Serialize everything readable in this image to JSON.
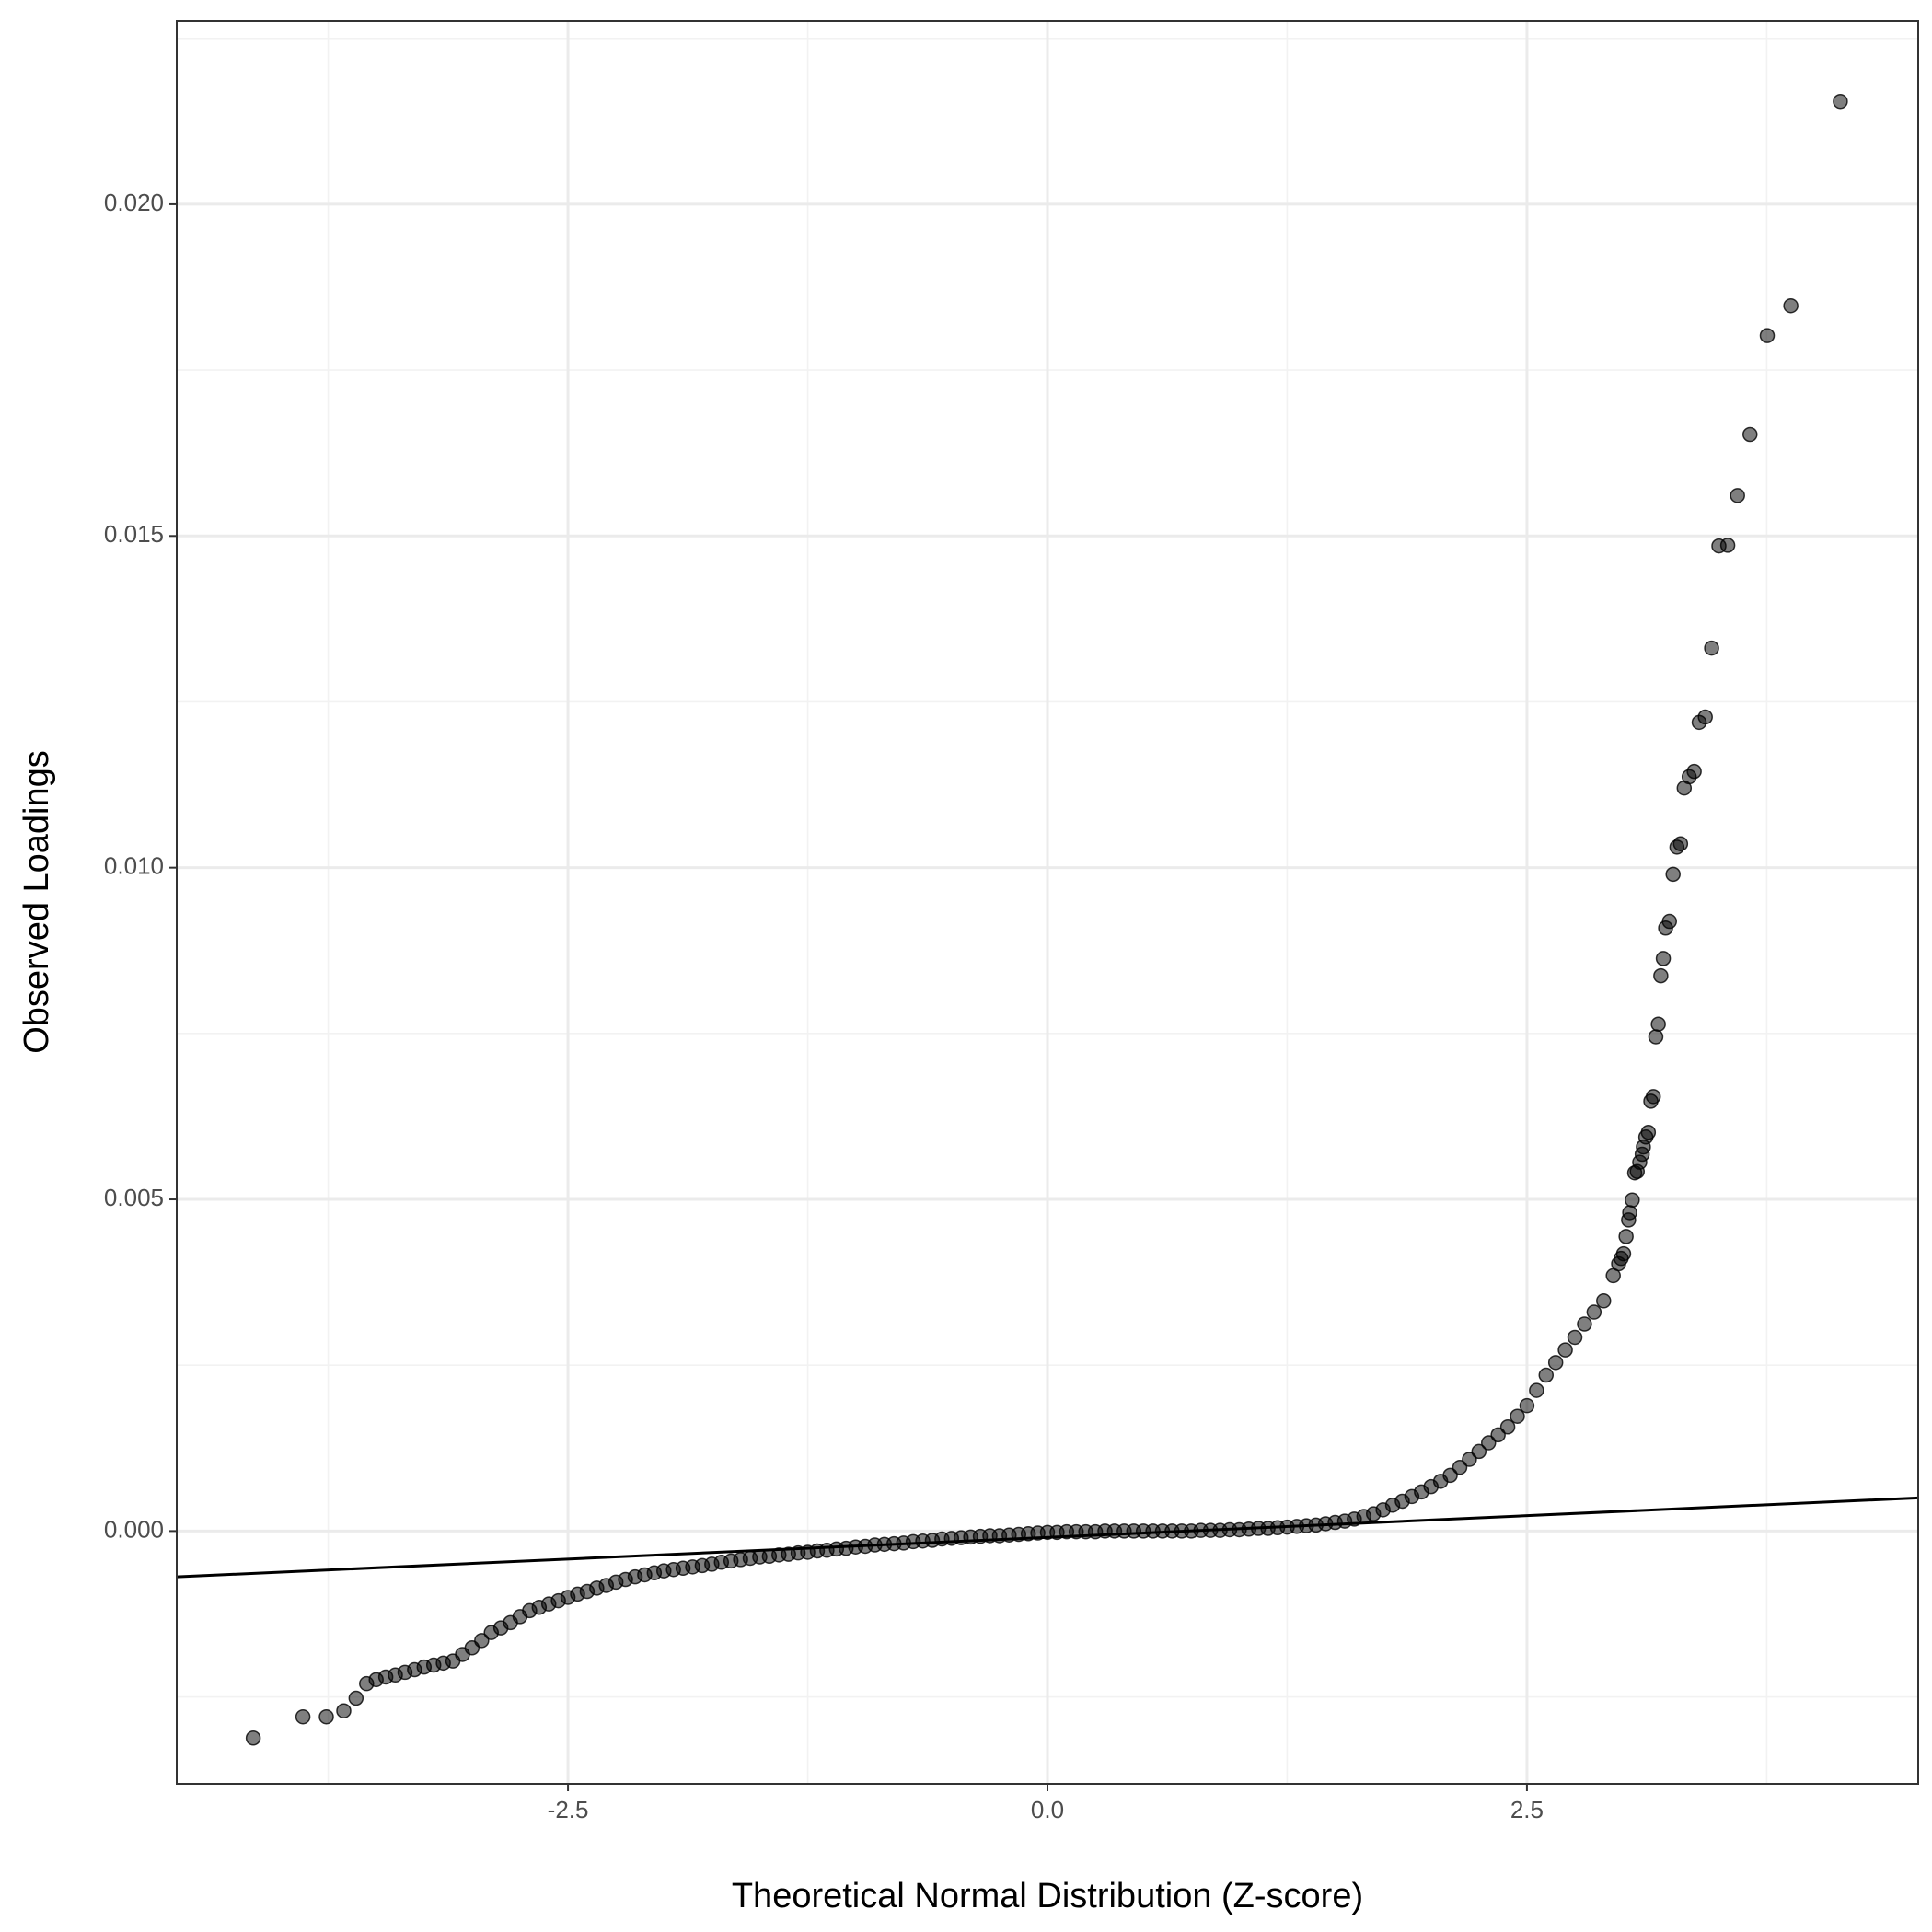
{
  "chart_data": {
    "type": "scatter",
    "x_label": "Theoretical Normal Distribution (Z-score)",
    "y_label": "Observed Loadings",
    "xlim": [
      -4.54,
      4.54
    ],
    "ylim": [
      -0.00381,
      0.02276
    ],
    "xticks": [
      -2.5,
      {
        "value": 0,
        "label": "0.0"
      },
      2.5
    ],
    "yticks": [
      {
        "value": 0,
        "label": "0.000"
      },
      {
        "value": 0.005,
        "label": "0.005"
      },
      {
        "value": 0.01,
        "label": "0.010"
      },
      {
        "value": 0.015,
        "label": "0.015"
      },
      {
        "value": 0.02,
        "label": "0.020"
      }
    ],
    "grid": true,
    "reference_line": {
      "color": "#000000",
      "x": [
        -4.54,
        4.54
      ],
      "y": [
        -0.00069,
        0.0005
      ]
    },
    "series": [
      {
        "color": "#000000",
        "x": [
          -4.141,
          -3.882,
          -3.76,
          -3.669,
          -3.605,
          -3.55,
          -3.5,
          -3.45,
          -3.4,
          -3.35,
          -3.3,
          -3.25,
          -3.2,
          -3.15,
          -3.1,
          -3.05,
          -3.0,
          -2.95,
          -2.9,
          -2.85,
          -2.8,
          -2.75,
          -2.7,
          -2.65,
          -2.6,
          -2.55,
          -2.5,
          -2.45,
          -2.4,
          -2.35,
          -2.3,
          -2.25,
          -2.2,
          -2.15,
          -2.1,
          -2.05,
          -2.0,
          -1.95,
          -1.9,
          -1.85,
          -1.8,
          -1.75,
          -1.7,
          -1.65,
          -1.6,
          -1.55,
          -1.5,
          -1.45,
          -1.4,
          -1.35,
          -1.3,
          -1.25,
          -1.2,
          -1.15,
          -1.1,
          -1.05,
          -1.0,
          -0.95,
          -0.9,
          -0.85,
          -0.8,
          -0.75,
          -0.7,
          -0.65,
          -0.6,
          -0.55,
          -0.5,
          -0.45,
          -0.4,
          -0.35,
          -0.3,
          -0.25,
          -0.2,
          -0.15,
          -0.1,
          -0.05,
          0,
          0.05,
          0.1,
          0.15,
          0.2,
          0.25,
          0.3,
          0.35,
          0.4,
          0.45,
          0.5,
          0.55,
          0.6,
          0.65,
          0.7,
          0.75,
          0.8,
          0.85,
          0.9,
          0.95,
          1.0,
          1.05,
          1.1,
          1.15,
          1.2,
          1.25,
          1.3,
          1.35,
          1.4,
          1.45,
          1.5,
          1.55,
          1.6,
          1.65,
          1.7,
          1.75,
          1.8,
          1.85,
          1.9,
          1.95,
          2.0,
          2.05,
          2.1,
          2.15,
          2.2,
          2.25,
          2.3,
          2.35,
          2.4,
          2.45,
          2.5,
          2.55,
          2.6,
          2.65,
          2.7,
          2.75,
          2.8,
          2.85,
          2.9,
          2.95,
          2.978,
          2.991,
          3.004,
          3.017,
          3.03,
          3.036,
          3.049,
          3.062,
          3.075,
          3.088,
          3.101,
          3.107,
          3.12,
          3.133,
          3.146,
          3.159,
          3.172,
          3.185,
          3.198,
          3.211,
          3.223,
          3.243,
          3.262,
          3.282,
          3.301,
          3.32,
          3.346,
          3.372,
          3.398,
          3.43,
          3.463,
          3.501,
          3.547,
          3.598,
          3.663,
          3.753,
          3.876,
          4.134
        ],
        "values": [
          -0.00312,
          -0.0028,
          -0.0028,
          -0.00271,
          -0.00252,
          -0.0023,
          -0.00224,
          -0.0022,
          -0.00217,
          -0.00213,
          -0.00209,
          -0.00205,
          -0.00202,
          -0.00199,
          -0.00196,
          -0.00186,
          -0.00176,
          -0.00165,
          -0.00153,
          -0.00146,
          -0.00138,
          -0.00129,
          -0.0012,
          -0.00115,
          -0.0011,
          -0.00105,
          -0.001,
          -0.00095,
          -0.00091,
          -0.00086,
          -0.00082,
          -0.00077,
          -0.00073,
          -0.00069,
          -0.00066,
          -0.00063,
          -0.0006,
          -0.00058,
          -0.00056,
          -0.00054,
          -0.00052,
          -0.0005,
          -0.00047,
          -0.00045,
          -0.00043,
          -0.00041,
          -0.00039,
          -0.00038,
          -0.00036,
          -0.00035,
          -0.00033,
          -0.00032,
          -0.0003,
          -0.00029,
          -0.00027,
          -0.00026,
          -0.00024,
          -0.00023,
          -0.00021,
          -0.0002,
          -0.00019,
          -0.00018,
          -0.00016,
          -0.00015,
          -0.00014,
          -0.00012,
          -0.00011,
          -0.0001,
          -9e-05,
          -8e-05,
          -7e-05,
          -7e-05,
          -6e-05,
          -5e-05,
          -4e-05,
          -3e-05,
          -2e-05,
          -2e-05,
          -1e-05,
          -1e-05,
          -1e-05,
          -1e-05,
          0,
          0,
          0,
          0,
          0,
          0,
          0,
          0,
          0,
          0,
          1e-05,
          1e-05,
          1e-05,
          2e-05,
          2e-05,
          3e-05,
          4e-05,
          4e-05,
          5e-05,
          6e-05,
          7e-05,
          8e-05,
          9e-05,
          0.00011,
          0.00013,
          0.00015,
          0.00018,
          0.00022,
          0.00026,
          0.00032,
          0.00039,
          0.00045,
          0.00052,
          0.00059,
          0.00067,
          0.00075,
          0.00084,
          0.00096,
          0.00108,
          0.0012,
          0.00133,
          0.00145,
          0.00157,
          0.00173,
          0.00189,
          0.00212,
          0.00235,
          0.00254,
          0.00273,
          0.00292,
          0.00312,
          0.0033,
          0.00347,
          0.00385,
          0.00403,
          0.00411,
          0.00418,
          0.00444,
          0.00469,
          0.0048,
          0.00499,
          0.0054,
          0.00542,
          0.00556,
          0.00568,
          0.00579,
          0.00594,
          0.00601,
          0.00648,
          0.00655,
          0.00745,
          0.00764,
          0.00837,
          0.00863,
          0.00909,
          0.00919,
          0.0099,
          0.01031,
          0.01036,
          0.0112,
          0.01137,
          0.01145,
          0.01219,
          0.01227,
          0.01331,
          0.01485,
          0.01486,
          0.01561,
          0.01653,
          0.01802,
          0.01847,
          0.02155
        ]
      }
    ]
  }
}
